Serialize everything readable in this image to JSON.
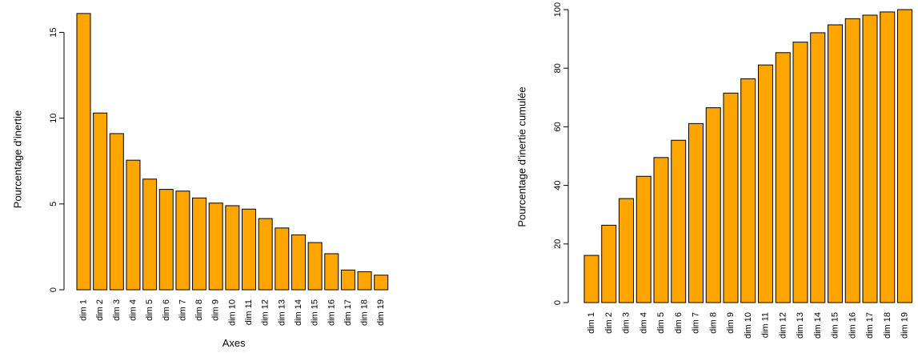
{
  "chart_data": [
    {
      "type": "bar",
      "title": "",
      "xlabel": "Axes",
      "ylabel": "Pourcentage d'inertie",
      "ylim": [
        0,
        16
      ],
      "yticks": [
        0,
        5,
        10,
        15
      ],
      "bar_color": "#FFA500",
      "categories": [
        "dim 1",
        "dim 2",
        "dim 3",
        "dim 4",
        "dim 5",
        "dim 6",
        "dim 7",
        "dim 8",
        "dim 9",
        "dim 10",
        "dim 11",
        "dim 12",
        "dim 13",
        "dim 14",
        "dim 15",
        "dim 16",
        "dim 17",
        "dim 18",
        "dim 19"
      ],
      "values": [
        16.1,
        10.3,
        9.1,
        7.55,
        6.45,
        5.85,
        5.75,
        5.35,
        5.05,
        4.9,
        4.7,
        4.15,
        3.6,
        3.2,
        2.75,
        2.1,
        1.15,
        1.05,
        0.85
      ]
    },
    {
      "type": "bar",
      "title": "",
      "xlabel": "",
      "ylabel": "Pourcentage d'inertie cumulée",
      "ylim": [
        0,
        100
      ],
      "yticks": [
        0,
        20,
        40,
        60,
        80,
        100
      ],
      "bar_color": "#FFA500",
      "categories": [
        "dim 1",
        "dim 2",
        "dim 3",
        "dim 4",
        "dim 5",
        "dim 6",
        "dim 7",
        "dim 8",
        "dim 9",
        "dim 10",
        "dim 11",
        "dim 12",
        "dim 13",
        "dim 14",
        "dim 15",
        "dim 16",
        "dim 17",
        "dim 18",
        "dim 19"
      ],
      "values": [
        16.1,
        26.4,
        35.5,
        43.1,
        49.5,
        55.4,
        61.1,
        66.5,
        71.5,
        76.4,
        81.1,
        85.3,
        88.9,
        92.1,
        94.8,
        96.9,
        98.1,
        99.2,
        100
      ]
    }
  ]
}
